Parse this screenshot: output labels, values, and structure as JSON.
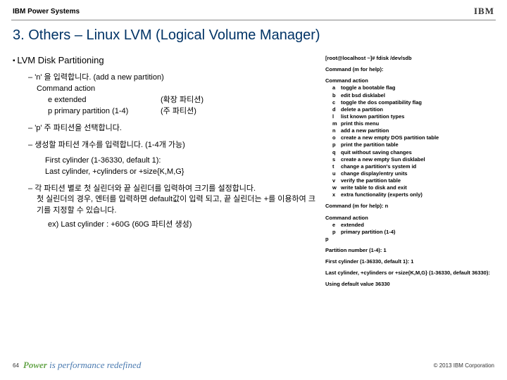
{
  "header": {
    "product": "IBM Power Systems",
    "logo": "IBM"
  },
  "title": "3. Others – Linux LVM (Logical Volume Manager)",
  "left": {
    "heading": "LVM Disk Partitioning",
    "b1_l1": "'n' 을 입력합니다. (add a new partition)",
    "b1_l2": "Command action",
    "b1_l3a": "e extended",
    "b1_l3b": "(확장 파티션)",
    "b1_l4a": "p primary partition (1-4)",
    "b1_l4b": "(주 파티션)",
    "b2": "'p' 주 파티션을 선택합니다.",
    "b3_l1": "생성할 파티션 개수를 입력합니다. (1-4개 가능)",
    "b3_l2": "First cylinder (1-36330, default 1):",
    "b3_l3": "Last cylinder, +cylinders or +size{K,M,G}",
    "b4_l1": "각 파티션 별로 첫 실린더와 끝 실린더를 입력하여 크기를 설정합니다.",
    "b4_l2": "첫 실린더의 경우, 엔터를 입력하면 default값이 입력 되고, 끝 실린더는 +를 이용하여 크기를 지정할 수 있습니다.",
    "b4_l3": "ex) Last cylinder : +60G (60G 파티션 생성)"
  },
  "right": {
    "r1": "[root@localhost ~]# fdisk /dev/sdb",
    "r2": "Command (m for help):",
    "r3": "Command action",
    "cmds": [
      {
        "k": "a",
        "t": "toggle a bootable flag"
      },
      {
        "k": "b",
        "t": "edit bsd disklabel"
      },
      {
        "k": "c",
        "t": "toggle the dos compatibility flag"
      },
      {
        "k": "d",
        "t": "delete a partition"
      },
      {
        "k": "l",
        "t": "list known partition types"
      },
      {
        "k": "m",
        "t": "print this menu"
      },
      {
        "k": "n",
        "t": "add a new partition"
      },
      {
        "k": "o",
        "t": "create a new empty DOS partition table"
      },
      {
        "k": "p",
        "t": "print the partition table"
      },
      {
        "k": "q",
        "t": "quit without saving changes"
      },
      {
        "k": "s",
        "t": "create a new empty Sun disklabel"
      },
      {
        "k": "t",
        "t": "change a partition's system id"
      },
      {
        "k": "u",
        "t": "change display/entry units"
      },
      {
        "k": "v",
        "t": "verify the partition table"
      },
      {
        "k": "w",
        "t": "write table to disk and exit"
      },
      {
        "k": "x",
        "t": "extra functionality (experts only)"
      }
    ],
    "r4": "Command (m for help): n",
    "r5": "Command action",
    "r5a_k": "e",
    "r5a_t": "extended",
    "r5b_k": "p",
    "r5b_t": "primary partition (1-4)",
    "r6": "p",
    "r7": "Partition number (1-4): 1",
    "r8": "First cylinder (1-36330, default 1): 1",
    "r9": "Last cylinder, +cylinders or +size{K,M,G} (1-36330, default 36330):",
    "r10": "Using default value 36330"
  },
  "footer": {
    "page": "64",
    "tag_power": "Power",
    "tag_rest": " is performance redefined",
    "copyright": "© 2013 IBM Corporation"
  },
  "colors": {
    "title": "#003366",
    "rule": "#888888"
  }
}
